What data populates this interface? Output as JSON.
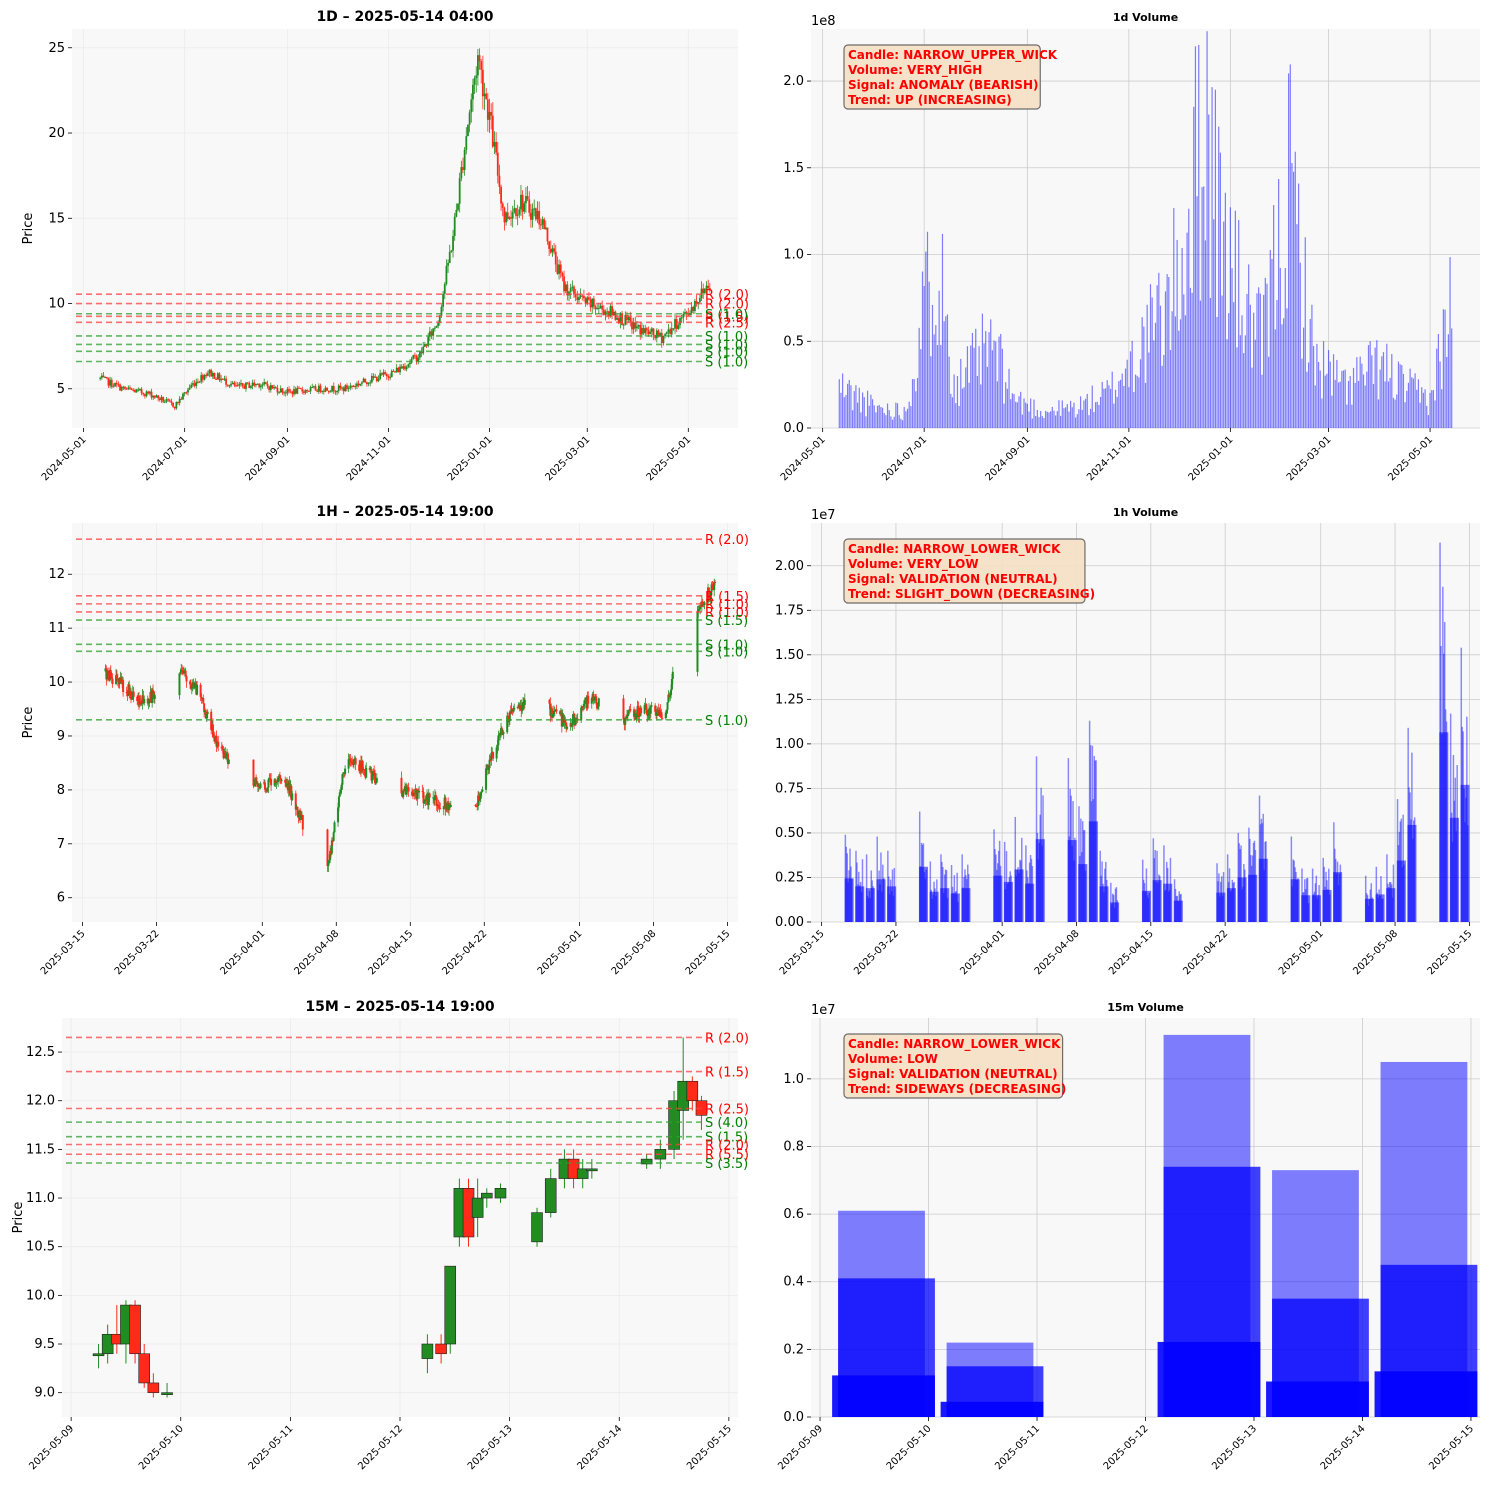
{
  "figure": {
    "colors": {
      "background": "#ffffff",
      "axes_bg": "#f8f8f8",
      "bull": "#228b22",
      "bear": "#ff2a1a",
      "volume": "#0000ff",
      "support": "#2ca02c",
      "resistance": "#ff4040",
      "annotation_bg": "#f5e1c6",
      "annotation_text": "#ff0000"
    }
  },
  "chart_data": [
    {
      "type": "candlestick",
      "title": "1D – 2025-05-14 04:00",
      "xlabel": "",
      "ylabel": "Price",
      "x_ticks": [
        "2024-05-01",
        "2024-07-01",
        "2024-09-01",
        "2024-11-01",
        "2025-01-01",
        "2025-03-01",
        "2025-05-01"
      ],
      "x_range": [
        "2024-04-24",
        "2025-05-31"
      ],
      "y_ticks": [
        5,
        10,
        15,
        20,
        25
      ],
      "ylim": [
        2.7,
        26.1
      ],
      "grid": true,
      "close_path": [
        [
          "2024-05-11",
          5.6
        ],
        [
          "2024-05-25",
          5.0
        ],
        [
          "2024-06-10",
          4.7
        ],
        [
          "2024-06-25",
          4.0
        ],
        [
          "2024-07-05",
          5.2
        ],
        [
          "2024-07-15",
          6.0
        ],
        [
          "2024-08-01",
          5.1
        ],
        [
          "2024-08-15",
          5.3
        ],
        [
          "2024-09-01",
          4.8
        ],
        [
          "2024-09-20",
          5.0
        ],
        [
          "2024-10-05",
          5.0
        ],
        [
          "2024-10-20",
          5.5
        ],
        [
          "2024-11-05",
          6.0
        ],
        [
          "2024-11-20",
          7.0
        ],
        [
          "2024-12-01",
          9.0
        ],
        [
          "2024-12-10",
          14.0
        ],
        [
          "2024-12-18",
          20.0
        ],
        [
          "2024-12-25",
          24.5
        ],
        [
          "2025-01-01",
          21.0
        ],
        [
          "2025-01-10",
          15.0
        ],
        [
          "2025-01-20",
          16.0
        ],
        [
          "2025-02-01",
          15.0
        ],
        [
          "2025-02-15",
          11.0
        ],
        [
          "2025-03-01",
          10.0
        ],
        [
          "2025-03-15",
          9.5
        ],
        [
          "2025-04-01",
          8.5
        ],
        [
          "2025-04-15",
          8.0
        ],
        [
          "2025-05-01",
          9.5
        ],
        [
          "2025-05-14",
          11.3
        ]
      ],
      "levels": [
        {
          "label": "R (2.0)",
          "kind": "resistance",
          "value": 10.55
        },
        {
          "label": "R (2.0)",
          "kind": "resistance",
          "value": 10.0
        },
        {
          "label": "R (1.5)",
          "kind": "resistance",
          "value": 9.25
        },
        {
          "label": "S (1.0)",
          "kind": "support",
          "value": 9.4
        },
        {
          "label": "R (2.5)",
          "kind": "resistance",
          "value": 8.9
        },
        {
          "label": "S (1.0)",
          "kind": "support",
          "value": 8.1
        },
        {
          "label": "S (1.0)",
          "kind": "support",
          "value": 7.6
        },
        {
          "label": "S (1.0)",
          "kind": "support",
          "value": 7.2
        },
        {
          "label": "S (1.0)",
          "kind": "support",
          "value": 6.6
        }
      ]
    },
    {
      "type": "bar",
      "title": "1d Volume",
      "xlabel": "",
      "ylabel": "",
      "y_multiplier": "1e8",
      "x_ticks": [
        "2024-05-01",
        "2024-07-01",
        "2024-09-01",
        "2024-11-01",
        "2025-01-01",
        "2025-03-01",
        "2025-05-01"
      ],
      "x_range": [
        "2024-04-24",
        "2025-05-31"
      ],
      "y_ticks": [
        0.0,
        0.5,
        1.0,
        1.5,
        2.0
      ],
      "ylim": [
        0,
        2.3
      ],
      "grid": true,
      "volume_path": [
        [
          "2024-05-11",
          0.3
        ],
        [
          "2024-06-01",
          0.15
        ],
        [
          "2024-06-20",
          0.12
        ],
        [
          "2024-07-08",
          1.3
        ],
        [
          "2024-07-20",
          0.3
        ],
        [
          "2024-08-10",
          0.6
        ],
        [
          "2024-08-25",
          0.2
        ],
        [
          "2024-09-10",
          0.12
        ],
        [
          "2024-10-01",
          0.15
        ],
        [
          "2024-10-20",
          0.25
        ],
        [
          "2024-11-01",
          0.45
        ],
        [
          "2024-11-15",
          0.7
        ],
        [
          "2024-11-25",
          0.9
        ],
        [
          "2024-12-05",
          1.3
        ],
        [
          "2024-12-12",
          1.9
        ],
        [
          "2024-12-18",
          2.2
        ],
        [
          "2024-12-25",
          1.5
        ],
        [
          "2025-01-05",
          1.0
        ],
        [
          "2025-01-20",
          0.6
        ],
        [
          "2025-02-06",
          1.75
        ],
        [
          "2025-02-20",
          0.5
        ],
        [
          "2025-03-10",
          0.3
        ],
        [
          "2025-04-01",
          0.45
        ],
        [
          "2025-04-15",
          0.3
        ],
        [
          "2025-05-01",
          0.2
        ],
        [
          "2025-05-14",
          0.9
        ]
      ],
      "annotation": [
        "Candle: NARROW_UPPER_WICK",
        "Volume: VERY_HIGH",
        "Signal: ANOMALY (BEARISH)",
        "Trend: UP (INCREASING)"
      ]
    },
    {
      "type": "candlestick",
      "title": "1H – 2025-05-14 19:00",
      "xlabel": "",
      "ylabel": "Price",
      "x_ticks": [
        "2025-03-15",
        "2025-03-22",
        "2025-04-01",
        "2025-04-08",
        "2025-04-15",
        "2025-04-22",
        "2025-05-01",
        "2025-05-08",
        "2025-05-15"
      ],
      "x_range": [
        "2025-03-14",
        "2025-05-16"
      ],
      "y_ticks": [
        6,
        7,
        8,
        9,
        10,
        11,
        12
      ],
      "ylim": [
        5.55,
        12.95
      ],
      "grid": true,
      "close_path": [
        [
          "2025-03-17",
          10.2
        ],
        [
          "2025-03-19",
          9.9
        ],
        [
          "2025-03-21",
          9.6
        ],
        [
          "2025-03-24",
          10.3
        ],
        [
          "2025-03-26",
          9.8
        ],
        [
          "2025-03-28",
          8.7
        ],
        [
          "2025-04-01",
          8.0
        ],
        [
          "2025-04-03",
          8.3
        ],
        [
          "2025-04-05",
          7.3
        ],
        [
          "2025-04-07",
          6.3
        ],
        [
          "2025-04-09",
          8.7
        ],
        [
          "2025-04-11",
          8.3
        ],
        [
          "2025-04-14",
          8.0
        ],
        [
          "2025-04-17",
          7.8
        ],
        [
          "2025-04-21",
          7.6
        ],
        [
          "2025-04-23",
          8.8
        ],
        [
          "2025-04-25",
          9.6
        ],
        [
          "2025-04-28",
          9.5
        ],
        [
          "2025-04-30",
          9.2
        ],
        [
          "2025-05-02",
          9.7
        ],
        [
          "2025-05-05",
          9.3
        ],
        [
          "2025-05-07",
          9.5
        ],
        [
          "2025-05-09",
          9.4
        ],
        [
          "2025-05-11",
          11.0
        ],
        [
          "2025-05-12",
          11.3
        ],
        [
          "2025-05-13",
          11.6
        ],
        [
          "2025-05-14",
          11.8
        ]
      ],
      "levels": [
        {
          "label": "R (2.0)",
          "kind": "resistance",
          "value": 12.65
        },
        {
          "label": "R (1.5)",
          "kind": "resistance",
          "value": 11.6
        },
        {
          "label": "R (1.0)",
          "kind": "resistance",
          "value": 11.45
        },
        {
          "label": "R (1.0)",
          "kind": "resistance",
          "value": 11.3
        },
        {
          "label": "S (1.5)",
          "kind": "support",
          "value": 11.15
        },
        {
          "label": "S (1.0)",
          "kind": "support",
          "value": 10.7
        },
        {
          "label": "S (1.0)",
          "kind": "support",
          "value": 10.57
        },
        {
          "label": "S (1.0)",
          "kind": "support",
          "value": 9.3
        }
      ]
    },
    {
      "type": "bar",
      "title": "1h Volume",
      "xlabel": "",
      "ylabel": "",
      "y_multiplier": "1e7",
      "x_ticks": [
        "2025-03-15",
        "2025-03-22",
        "2025-04-01",
        "2025-04-08",
        "2025-04-15",
        "2025-04-22",
        "2025-05-01",
        "2025-05-08",
        "2025-05-15"
      ],
      "x_range": [
        "2025-03-14",
        "2025-05-16"
      ],
      "y_ticks": [
        0.0,
        0.25,
        0.5,
        0.75,
        1.0,
        1.25,
        1.5,
        1.75,
        2.0
      ],
      "ylim": [
        0,
        2.24
      ],
      "grid": true,
      "sessions": [
        [
          "2025-03-17",
          0.49
        ],
        [
          "2025-03-18",
          0.4
        ],
        [
          "2025-03-19",
          0.38
        ],
        [
          "2025-03-20",
          0.48
        ],
        [
          "2025-03-21",
          0.4
        ],
        [
          "2025-03-24",
          0.62
        ],
        [
          "2025-03-25",
          0.34
        ],
        [
          "2025-03-26",
          0.38
        ],
        [
          "2025-03-27",
          0.32
        ],
        [
          "2025-03-28",
          0.38
        ],
        [
          "2025-03-31",
          0.52
        ],
        [
          "2025-04-01",
          0.45
        ],
        [
          "2025-04-02",
          0.59
        ],
        [
          "2025-04-03",
          0.43
        ],
        [
          "2025-04-04",
          0.93
        ],
        [
          "2025-04-07",
          0.92
        ],
        [
          "2025-04-08",
          0.65
        ],
        [
          "2025-04-09",
          1.13
        ],
        [
          "2025-04-10",
          0.4
        ],
        [
          "2025-04-11",
          0.22
        ],
        [
          "2025-04-14",
          0.35
        ],
        [
          "2025-04-15",
          0.47
        ],
        [
          "2025-04-16",
          0.43
        ],
        [
          "2025-04-17",
          0.24
        ],
        [
          "2025-04-21",
          0.33
        ],
        [
          "2025-04-22",
          0.38
        ],
        [
          "2025-04-23",
          0.5
        ],
        [
          "2025-04-24",
          0.53
        ],
        [
          "2025-04-25",
          0.71
        ],
        [
          "2025-04-28",
          0.48
        ],
        [
          "2025-04-29",
          0.3
        ],
        [
          "2025-04-30",
          0.3
        ],
        [
          "2025-05-01",
          0.36
        ],
        [
          "2025-05-02",
          0.56
        ],
        [
          "2025-05-05",
          0.26
        ],
        [
          "2025-05-06",
          0.31
        ],
        [
          "2025-05-07",
          0.38
        ],
        [
          "2025-05-08",
          0.69
        ],
        [
          "2025-05-09",
          1.09
        ],
        [
          "2025-05-12",
          2.13
        ],
        [
          "2025-05-13",
          1.17
        ],
        [
          "2025-05-14",
          1.54
        ]
      ],
      "annotation": [
        "Candle: NARROW_LOWER_WICK",
        "Volume: VERY_LOW",
        "Signal: VALIDATION (NEUTRAL)",
        "Trend: SLIGHT_DOWN (DECREASING)"
      ]
    },
    {
      "type": "candlestick",
      "title": "15M – 2025-05-14 19:00",
      "xlabel": "",
      "ylabel": "Price",
      "x_ticks": [
        "2025-05-09",
        "2025-05-10",
        "2025-05-11",
        "2025-05-12",
        "2025-05-13",
        "2025-05-14",
        "2025-05-15"
      ],
      "x_range": [
        "2025-05-08 22:00",
        "2025-05-15 02:00"
      ],
      "y_ticks": [
        9.0,
        9.5,
        10.0,
        10.5,
        11.0,
        11.5,
        12.0,
        12.5
      ],
      "ylim": [
        8.75,
        12.85
      ],
      "grid": true,
      "candles": [
        [
          "2025-05-09 06:00",
          9.4,
          9.5,
          9.25,
          9.4
        ],
        [
          "2025-05-09 08:00",
          9.4,
          9.7,
          9.3,
          9.6
        ],
        [
          "2025-05-09 10:00",
          9.6,
          9.9,
          9.4,
          9.5
        ],
        [
          "2025-05-09 12:00",
          9.5,
          9.95,
          9.3,
          9.9
        ],
        [
          "2025-05-09 14:00",
          9.9,
          9.95,
          9.3,
          9.4
        ],
        [
          "2025-05-09 16:00",
          9.4,
          9.5,
          9.05,
          9.1
        ],
        [
          "2025-05-09 18:00",
          9.1,
          9.2,
          8.95,
          9.0
        ],
        [
          "2025-05-09 21:00",
          9.0,
          9.1,
          8.95,
          9.0
        ],
        [
          "2025-05-12 06:00",
          9.35,
          9.6,
          9.2,
          9.5
        ],
        [
          "2025-05-12 09:00",
          9.5,
          9.6,
          9.3,
          9.4
        ],
        [
          "2025-05-12 11:00",
          9.5,
          10.3,
          9.4,
          10.3
        ],
        [
          "2025-05-12 13:00",
          10.6,
          11.2,
          10.5,
          11.1
        ],
        [
          "2025-05-12 15:00",
          11.1,
          11.2,
          10.5,
          10.6
        ],
        [
          "2025-05-12 17:00",
          10.8,
          11.2,
          10.6,
          11.0
        ],
        [
          "2025-05-12 19:00",
          11.0,
          11.1,
          10.9,
          11.05
        ],
        [
          "2025-05-12 22:00",
          11.0,
          11.15,
          10.95,
          11.1
        ],
        [
          "2025-05-13 06:00",
          10.55,
          10.9,
          10.5,
          10.85
        ],
        [
          "2025-05-13 09:00",
          10.85,
          11.3,
          10.8,
          11.2
        ],
        [
          "2025-05-13 12:00",
          11.2,
          11.5,
          11.1,
          11.4
        ],
        [
          "2025-05-13 14:00",
          11.4,
          11.5,
          11.1,
          11.2
        ],
        [
          "2025-05-13 16:00",
          11.2,
          11.4,
          11.1,
          11.3
        ],
        [
          "2025-05-13 18:00",
          11.3,
          11.4,
          11.2,
          11.3
        ],
        [
          "2025-05-14 06:00",
          11.35,
          11.45,
          11.3,
          11.4
        ],
        [
          "2025-05-14 09:00",
          11.4,
          11.6,
          11.3,
          11.5
        ],
        [
          "2025-05-14 12:00",
          11.5,
          12.1,
          11.4,
          12.0
        ],
        [
          "2025-05-14 14:00",
          11.9,
          12.65,
          11.6,
          12.2
        ],
        [
          "2025-05-14 16:00",
          12.2,
          12.25,
          11.9,
          12.0
        ],
        [
          "2025-05-14 18:00",
          12.0,
          12.05,
          11.7,
          11.85
        ]
      ],
      "levels": [
        {
          "label": "R (2.0)",
          "kind": "resistance",
          "value": 12.65
        },
        {
          "label": "R (1.5)",
          "kind": "resistance",
          "value": 12.3
        },
        {
          "label": "R (2.5)",
          "kind": "resistance",
          "value": 11.92
        },
        {
          "label": "S (4.0)",
          "kind": "support",
          "value": 11.78
        },
        {
          "label": "S (1.5)",
          "kind": "support",
          "value": 11.63
        },
        {
          "label": "R (2.0)",
          "kind": "resistance",
          "value": 11.55
        },
        {
          "label": "R (5.5)",
          "kind": "resistance",
          "value": 11.45
        },
        {
          "label": "S (3.5)",
          "kind": "support",
          "value": 11.36
        }
      ]
    },
    {
      "type": "bar",
      "title": "15m Volume",
      "xlabel": "",
      "ylabel": "",
      "y_multiplier": "1e7",
      "x_ticks": [
        "2025-05-09",
        "2025-05-10",
        "2025-05-11",
        "2025-05-12",
        "2025-05-13",
        "2025-05-14",
        "2025-05-15"
      ],
      "x_range": [
        "2025-05-08 22:00",
        "2025-05-15 02:00"
      ],
      "y_ticks": [
        0.0,
        0.2,
        0.4,
        0.6,
        0.8,
        1.0
      ],
      "ylim": [
        0,
        1.18
      ],
      "grid": true,
      "sessions": [
        [
          "2025-05-09",
          0.61,
          0.41
        ],
        [
          "2025-05-10",
          0.22,
          0.15
        ],
        [
          "2025-05-12",
          1.13,
          0.74
        ],
        [
          "2025-05-13",
          0.73,
          0.35
        ],
        [
          "2025-05-14",
          1.05,
          0.45
        ]
      ],
      "annotation": [
        "Candle: NARROW_LOWER_WICK",
        "Volume: LOW",
        "Signal: VALIDATION (NEUTRAL)",
        "Trend: SIDEWAYS (DECREASING)"
      ]
    }
  ]
}
